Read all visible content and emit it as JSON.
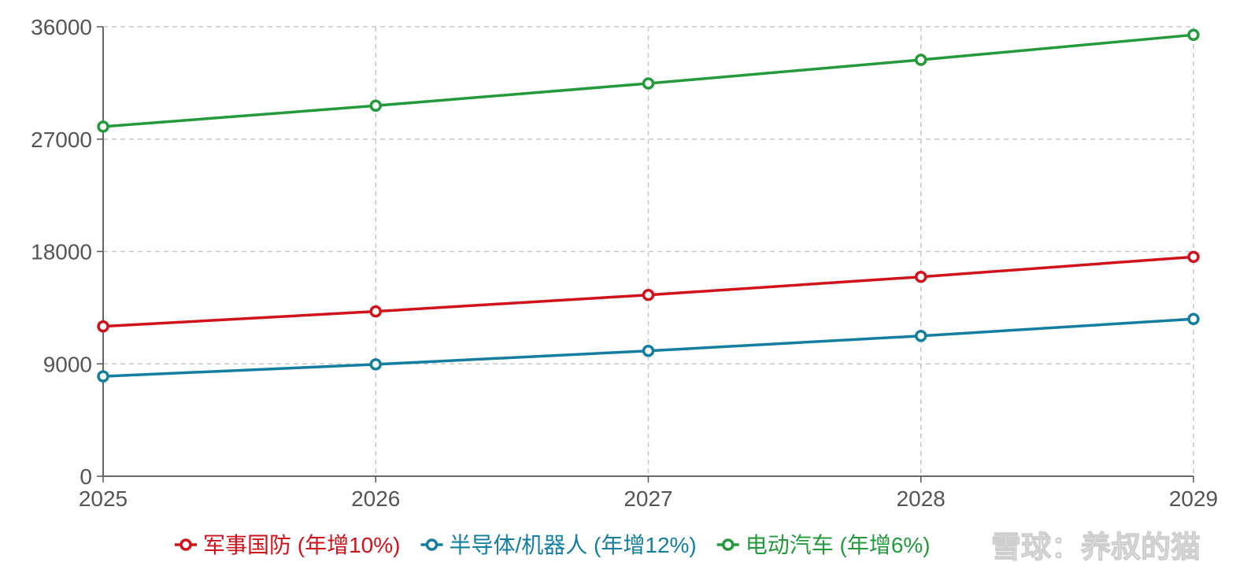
{
  "chart_data": {
    "type": "line",
    "x": [
      "2025",
      "2026",
      "2027",
      "2028",
      "2029"
    ],
    "series": [
      {
        "name": "军事国防 (年增10%)",
        "color": "#d0121b",
        "values": [
          12000,
          13200,
          14520,
          15970,
          17570
        ]
      },
      {
        "name": "半导体/机器人 (年增12%)",
        "color": "#137ea0",
        "values": [
          8000,
          8960,
          10040,
          11240,
          12590
        ]
      },
      {
        "name": "电动汽车 (年增6%)",
        "color": "#239a3b",
        "values": [
          28000,
          29680,
          31460,
          33350,
          35350
        ]
      }
    ],
    "ylim": [
      0,
      36000
    ],
    "yticks": [
      "0",
      "9000",
      "18000",
      "27000",
      "36000"
    ],
    "ytick_values": [
      0,
      9000,
      18000,
      27000,
      36000
    ],
    "grid": true,
    "legend_position": "bottom-center",
    "title": "",
    "xlabel": "",
    "ylabel": ""
  },
  "watermark": {
    "text": "雪球：养叔的猫"
  }
}
